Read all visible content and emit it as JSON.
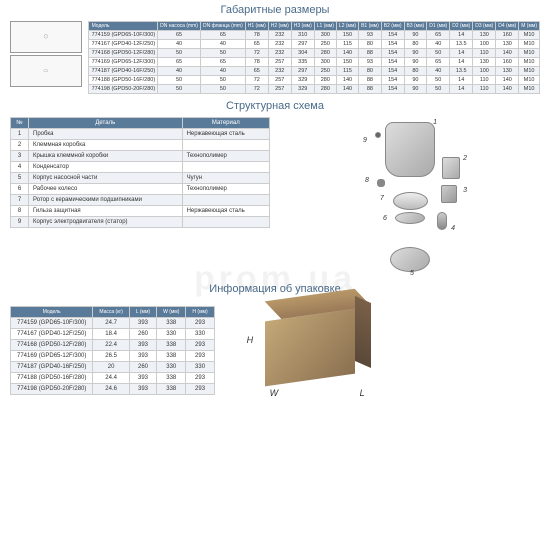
{
  "titles": {
    "dims": "Габаритные размеры",
    "struct": "Структурная схема",
    "pack": "Информация об упаковке"
  },
  "dimTable": {
    "headers": [
      "Модель",
      "DN насоса (mm)",
      "DN фланца (mm)",
      "H1 (мм)",
      "H2 (мм)",
      "H3 (мм)",
      "L1 (мм)",
      "L2 (мм)",
      "B1 (мм)",
      "B2 (мм)",
      "B3 (мм)",
      "D1 (мм)",
      "D2 (мм)",
      "D3 (мм)",
      "D4 (мм)",
      "M (мм)"
    ],
    "rows": [
      [
        "774159 (GPD65-10F/300)",
        "65",
        "65",
        "78",
        "232",
        "310",
        "300",
        "150",
        "93",
        "154",
        "90",
        "65",
        "14",
        "130",
        "160",
        "M10"
      ],
      [
        "774167 (GPD40-12F/250)",
        "40",
        "40",
        "65",
        "232",
        "297",
        "250",
        "115",
        "80",
        "154",
        "80",
        "40",
        "13.5",
        "100",
        "130",
        "M10"
      ],
      [
        "774168 (GPD50-12F/280)",
        "50",
        "50",
        "72",
        "232",
        "304",
        "280",
        "140",
        "88",
        "154",
        "90",
        "50",
        "14",
        "110",
        "140",
        "M10"
      ],
      [
        "774169 (GPD65-12F/300)",
        "65",
        "65",
        "78",
        "257",
        "335",
        "300",
        "150",
        "93",
        "154",
        "90",
        "65",
        "14",
        "130",
        "160",
        "M10"
      ],
      [
        "774187 (GPD40-16F/250)",
        "40",
        "40",
        "65",
        "232",
        "297",
        "250",
        "115",
        "80",
        "154",
        "80",
        "40",
        "13.5",
        "100",
        "130",
        "M10"
      ],
      [
        "774188 (GPD50-16F/280)",
        "50",
        "50",
        "72",
        "257",
        "329",
        "280",
        "140",
        "88",
        "154",
        "90",
        "50",
        "14",
        "110",
        "140",
        "M10"
      ],
      [
        "774198 (GPD50-20F/280)",
        "50",
        "50",
        "72",
        "257",
        "329",
        "280",
        "140",
        "88",
        "154",
        "90",
        "50",
        "14",
        "110",
        "140",
        "M10"
      ]
    ]
  },
  "structTable": {
    "headers": [
      "№",
      "Деталь",
      "Материал"
    ],
    "rows": [
      [
        "1",
        "Пробка",
        "Нержавеющая сталь"
      ],
      [
        "2",
        "Клеммная коробка",
        ""
      ],
      [
        "3",
        "Крышка клеммной коробки",
        "Технополимер"
      ],
      [
        "4",
        "Конденсатор",
        ""
      ],
      [
        "5",
        "Корпус насосной части",
        "Чугун"
      ],
      [
        "6",
        "Рабочее колесо",
        "Технополимер"
      ],
      [
        "7",
        "Ротор с керамическими подшипниками",
        ""
      ],
      [
        "8",
        "Гильза защитная",
        "Нержавеющая сталь"
      ],
      [
        "9",
        "Корпус электродвигателя (статор)",
        ""
      ]
    ]
  },
  "packTable": {
    "headers": [
      "Модель",
      "Масса (кг)",
      "L (мм)",
      "W (мм)",
      "H (мм)"
    ],
    "rows": [
      [
        "774159 (GPD65-10F/300)",
        "24.7",
        "393",
        "338",
        "293"
      ],
      [
        "774167 (GPD40-12F/250)",
        "18.4",
        "260",
        "330",
        "330"
      ],
      [
        "774168 (GPD50-12F/280)",
        "22.4",
        "393",
        "338",
        "293"
      ],
      [
        "774169 (GPD65-12F/300)",
        "26.5",
        "393",
        "338",
        "293"
      ],
      [
        "774187 (GPD40-16F/250)",
        "20",
        "260",
        "330",
        "330"
      ],
      [
        "774188 (GPD50-16F/280)",
        "24.4",
        "393",
        "338",
        "293"
      ],
      [
        "774198 (GPD50-20F/280)",
        "24.6",
        "393",
        "338",
        "293"
      ]
    ]
  },
  "boxLabels": {
    "H": "H",
    "W": "W",
    "L": "L"
  },
  "watermark": "prom.ua"
}
